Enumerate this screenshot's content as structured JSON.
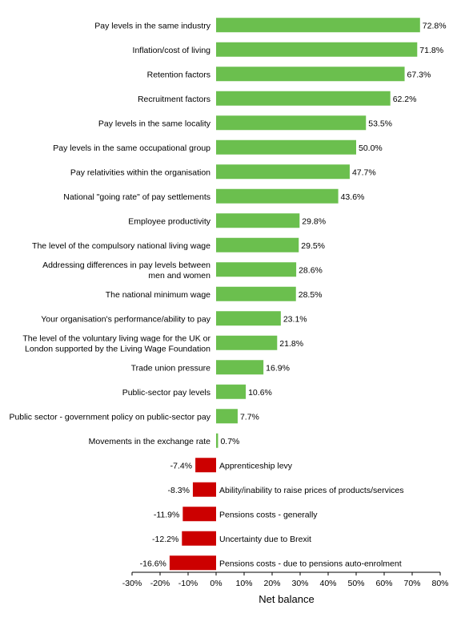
{
  "chart_data": {
    "type": "bar",
    "orientation": "horizontal",
    "xlabel": "Net balance",
    "xlim": [
      -30,
      80
    ],
    "x_ticks": [
      "-30%",
      "-20%",
      "-10%",
      "0%",
      "10%",
      "20%",
      "30%",
      "40%",
      "50%",
      "60%",
      "70%",
      "80%"
    ],
    "grid": false,
    "legend": "none",
    "colors": {
      "positive": "#6bbf4e",
      "negative": "#cc0000"
    },
    "categories": [
      [
        "Pay levels in the same industry"
      ],
      [
        "Inflation/cost of living"
      ],
      [
        "Retention factors"
      ],
      [
        "Recruitment factors"
      ],
      [
        "Pay levels in the same locality"
      ],
      [
        "Pay levels in the same occupational group"
      ],
      [
        "Pay relativities within the organisation"
      ],
      [
        "National \"going rate\" of pay settlements"
      ],
      [
        "Employee productivity"
      ],
      [
        "The level of the compulsory national living wage"
      ],
      [
        "Addressing differences in pay levels between",
        "men and women"
      ],
      [
        "The national minimum wage"
      ],
      [
        "Your organisation's performance/ability to pay"
      ],
      [
        "The level of the voluntary living wage for the UK or",
        "London supported by the Living Wage Foundation"
      ],
      [
        "Trade union pressure"
      ],
      [
        "Public-sector pay levels"
      ],
      [
        "Public sector - government policy on public-sector pay"
      ],
      [
        "Movements in the exchange rate"
      ],
      [
        "Apprenticeship levy"
      ],
      [
        "Ability/inability to raise prices of products/services"
      ],
      [
        "Pensions costs - generally"
      ],
      [
        "Uncertainty due to Brexit"
      ],
      [
        "Pensions costs - due to pensions auto-enrolment"
      ]
    ],
    "values": [
      72.8,
      71.8,
      67.3,
      62.2,
      53.5,
      50.0,
      47.7,
      43.6,
      29.8,
      29.5,
      28.6,
      28.5,
      23.1,
      21.8,
      16.9,
      10.6,
      7.7,
      0.7,
      -7.4,
      -8.3,
      -11.9,
      -12.2,
      -16.6
    ],
    "data_labels": [
      "72.8%",
      "71.8%",
      "67.3%",
      "62.2%",
      "53.5%",
      "50.0%",
      "47.7%",
      "43.6%",
      "29.8%",
      "29.5%",
      "28.6%",
      "28.5%",
      "23.1%",
      "21.8%",
      "16.9%",
      "10.6%",
      "7.7%",
      "0.7%",
      "-7.4%",
      "-8.3%",
      "-11.9%",
      "-12.2%",
      "-16.6%"
    ]
  }
}
